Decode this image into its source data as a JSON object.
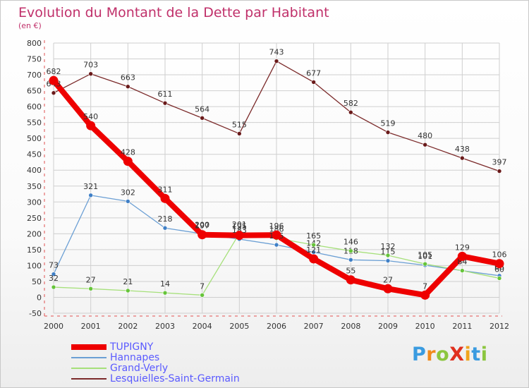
{
  "title": "Evolution du Montant de la Dette par Habitant",
  "subtitle": "(en €)",
  "chart_data": {
    "type": "line",
    "x": [
      "2000",
      "2001",
      "2002",
      "2003",
      "2004",
      "2005",
      "2006",
      "2007",
      "2008",
      "2009",
      "2010",
      "2011",
      "2012"
    ],
    "ylim": [
      -50,
      800
    ],
    "yticks": [
      -50,
      0,
      50,
      100,
      150,
      200,
      250,
      300,
      350,
      400,
      450,
      500,
      550,
      600,
      650,
      700,
      750,
      800
    ],
    "grid": true,
    "legend_position": "bottom-left",
    "series": [
      {
        "name": "Lesquielles-Saint-Germain",
        "color": "#7b2a2a",
        "width": 1.3,
        "marker": "#6a1a1a",
        "values": [
          643,
          703,
          663,
          611,
          564,
          515,
          743,
          677,
          582,
          519,
          480,
          438,
          397
        ],
        "labels": [
          "643",
          "703",
          "663",
          "611",
          "564",
          "515",
          "743",
          "677",
          "582",
          "519",
          "480",
          "438",
          "397"
        ]
      },
      {
        "name": "Hannapes",
        "color": "#6b9fd4",
        "width": 1.3,
        "marker": "#3f7fc6",
        "values": [
          73,
          321,
          302,
          218,
          200,
          183,
          165,
          142,
          118,
          115,
          101,
          84,
          68
        ],
        "labels": [
          "73",
          "321",
          "302",
          "218",
          "200",
          "183",
          "165",
          "142",
          "118",
          "115",
          "101",
          "84",
          "68"
        ]
      },
      {
        "name": "Grand-Verly",
        "color": "#a6e07a",
        "width": 1.3,
        "marker": "#66c43a",
        "values": [
          32,
          27,
          21,
          14,
          7,
          201,
          186,
          165,
          146,
          132,
          105,
          84,
          60
        ],
        "labels": [
          "32",
          "27",
          "21",
          "14",
          "7",
          "201",
          "186",
          "165",
          "146",
          "132",
          "105",
          "84",
          "60"
        ]
      },
      {
        "name": "TUPIGNY",
        "color": "#ee0000",
        "width": 8,
        "marker": "#ee0000",
        "values": [
          682,
          540,
          428,
          311,
          197,
          195,
          196,
          121,
          55,
          27,
          7,
          129,
          106
        ],
        "labels": [
          "682",
          "540",
          "428",
          "311",
          "197",
          "195",
          "196",
          "121",
          "55",
          "27",
          "7",
          "129",
          "106"
        ]
      }
    ]
  },
  "legend": [
    {
      "name": "TUPIGNY",
      "color": "#ee0000",
      "thickness": 8
    },
    {
      "name": "Hannapes",
      "color": "#6b9fd4",
      "thickness": 2
    },
    {
      "name": "Grand-Verly",
      "color": "#a6e07a",
      "thickness": 2
    },
    {
      "name": "Lesquielles-Saint-Germain",
      "color": "#7b2a2a",
      "thickness": 2
    }
  ],
  "logo": {
    "text": "ProXiti",
    "colors": [
      "#3a9be0",
      "#f08a1c",
      "#8cc63f",
      "#e0301e",
      "#f0a41c",
      "#3a9be0",
      "#8cc63f"
    ]
  }
}
